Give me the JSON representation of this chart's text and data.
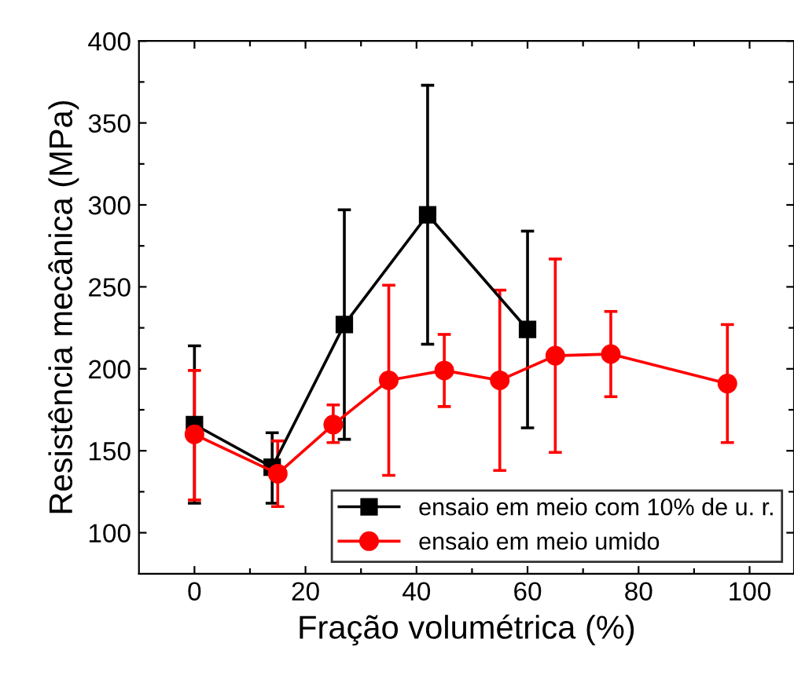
{
  "chart_data": {
    "type": "line",
    "xlabel": "Fração volumétrica (%)",
    "ylabel": "Resistência mecânica (MPa)",
    "xlim": [
      -10,
      108
    ],
    "ylim": [
      75,
      400
    ],
    "xticks": [
      0,
      {
        "value": 10,
        "label": null
      },
      20,
      {
        "value": 30,
        "label": null
      },
      40,
      {
        "value": 50,
        "label": null
      },
      60,
      {
        "value": 70,
        "label": null
      },
      80,
      {
        "value": 90,
        "label": null
      },
      100
    ],
    "yticks": [
      100,
      {
        "value": 125,
        "label": null
      },
      150,
      {
        "value": 175,
        "label": null
      },
      200,
      {
        "value": 225,
        "label": null
      },
      250,
      {
        "value": 275,
        "label": null
      },
      300,
      {
        "value": 325,
        "label": null
      },
      350,
      {
        "value": 375,
        "label": null
      },
      400
    ],
    "grid": false,
    "legend": "bottom right",
    "line_style": "solid",
    "series": [
      {
        "name": "ensaio em meio com 10% de u. r.",
        "color": "#000000",
        "marker": "square",
        "x": [
          0,
          14,
          27,
          42,
          60
        ],
        "values": [
          166,
          140,
          227,
          294,
          224
        ],
        "errors": [
          [
            118,
            214
          ],
          [
            118,
            161
          ],
          [
            157,
            297
          ],
          [
            215,
            373
          ],
          [
            164,
            284
          ]
        ]
      },
      {
        "name": "ensaio em meio umido",
        "color": "#ff0000",
        "marker": "circle",
        "x": [
          0,
          15,
          25,
          35,
          45,
          55,
          65,
          75,
          96
        ],
        "values": [
          160,
          136,
          166,
          193,
          199,
          193,
          208,
          209,
          191
        ],
        "errors": [
          [
            120,
            199
          ],
          [
            116,
            156
          ],
          [
            155,
            178
          ],
          [
            135,
            251
          ],
          [
            177,
            221
          ],
          [
            138,
            248
          ],
          [
            149,
            267
          ],
          [
            183,
            235
          ],
          [
            155,
            227
          ]
        ]
      }
    ]
  }
}
